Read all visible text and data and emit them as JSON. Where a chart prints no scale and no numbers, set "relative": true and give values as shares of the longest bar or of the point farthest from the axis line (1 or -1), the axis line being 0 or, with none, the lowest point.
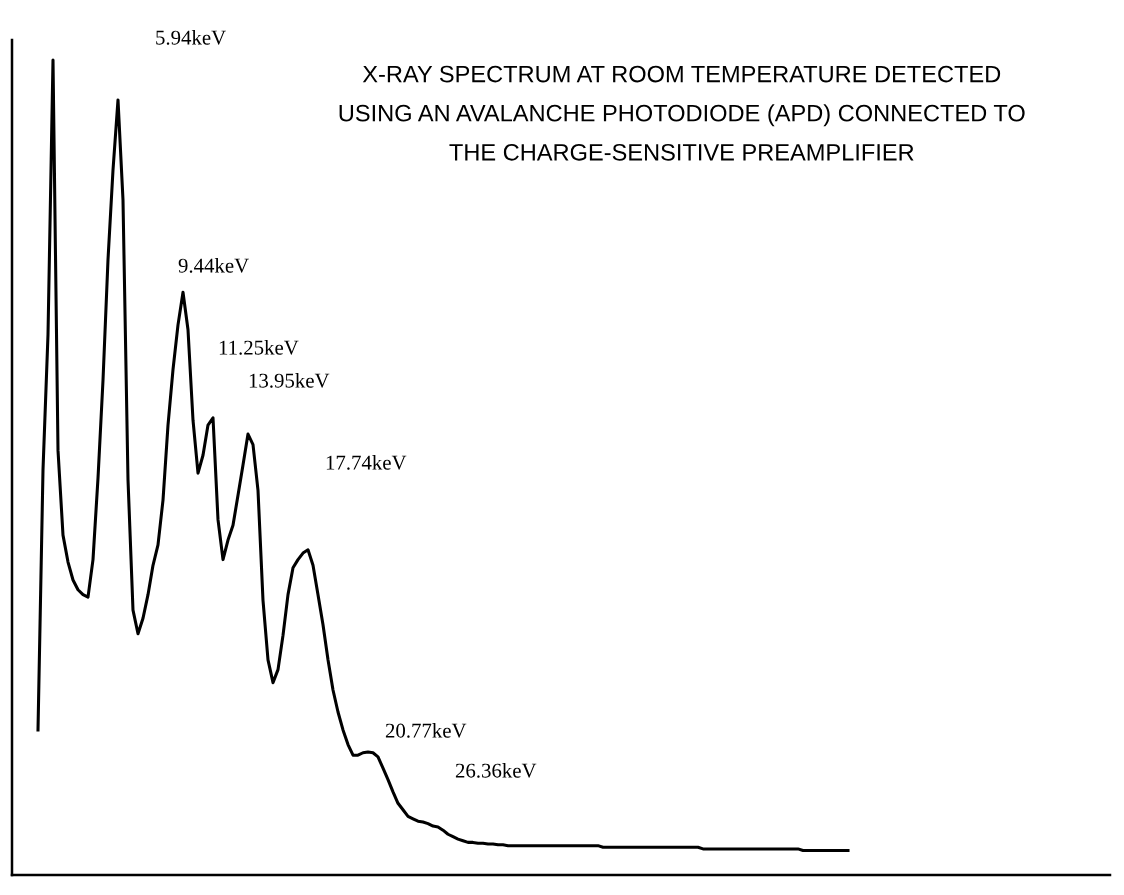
{
  "chart_data": {
    "type": "line",
    "relative": true,
    "marker": "none",
    "line_style": "solid",
    "title": "X-RAY SPECTRUM AT ROOM TEMPERATURE DETECTED\nUSING AN AVALANCHE PHOTODIODE (APD) CONNECTED TO\nTHE CHARGE-SENSITIVE PREAMPLIFIER",
    "annotations": [
      "5.94keV",
      "9.44keV",
      "11.25keV",
      "13.95keV",
      "17.74keV",
      "20.77keV",
      "26.36keV"
    ],
    "categories": [
      null,
      null,
      null,
      null,
      null,
      null,
      null,
      null,
      null,
      null,
      null,
      null,
      null,
      null,
      null,
      null,
      null,
      null,
      null,
      null,
      null,
      null,
      null,
      null,
      null,
      null,
      null,
      null,
      null,
      null,
      null,
      null,
      null,
      null,
      null,
      null,
      null,
      null,
      null,
      null,
      null,
      null,
      null,
      null,
      null,
      null,
      null,
      null,
      null,
      null,
      null,
      null,
      null,
      null,
      null,
      null,
      null,
      null,
      null,
      null,
      null,
      null,
      null,
      null,
      null,
      null,
      null,
      null,
      null,
      null,
      null,
      null,
      null,
      null,
      null,
      null,
      null,
      null,
      null,
      null,
      null,
      null,
      null,
      null,
      null,
      null,
      null,
      null,
      null,
      null,
      null,
      null,
      null,
      null,
      null,
      null,
      null,
      null,
      null,
      null,
      null,
      null,
      null,
      null,
      null,
      null,
      null,
      null,
      null,
      null,
      null,
      null,
      null,
      null,
      null,
      null,
      null,
      null,
      null,
      null,
      null,
      null,
      null,
      null,
      null,
      null,
      null,
      null,
      null,
      null,
      null,
      null,
      null,
      null,
      null,
      null,
      null,
      null,
      null,
      null,
      null,
      null,
      null,
      null,
      null,
      null,
      null,
      null,
      null,
      null,
      null,
      null,
      null,
      null,
      null,
      null,
      null,
      null,
      null,
      null,
      null,
      null,
      null
    ],
    "series": [
      {
        "color": "#000000",
        "values": [
          0.178,
          0.497,
          0.663,
          1.0,
          0.521,
          0.417,
          0.384,
          0.362,
          0.35,
          0.344,
          0.341,
          0.387,
          0.487,
          0.607,
          0.755,
          0.865,
          0.951,
          0.828,
          0.485,
          0.325,
          0.296,
          0.315,
          0.344,
          0.38,
          0.405,
          0.46,
          0.552,
          0.62,
          0.675,
          0.715,
          0.669,
          0.558,
          0.493,
          0.515,
          0.552,
          0.561,
          0.436,
          0.387,
          0.411,
          0.429,
          0.466,
          0.503,
          0.541,
          0.528,
          0.472,
          0.337,
          0.264,
          0.236,
          0.252,
          0.294,
          0.344,
          0.377,
          0.387,
          0.395,
          0.399,
          0.38,
          0.344,
          0.307,
          0.264,
          0.227,
          0.2,
          0.178,
          0.16,
          0.147,
          0.147,
          0.15,
          0.151,
          0.15,
          0.145,
          0.131,
          0.117,
          0.102,
          0.088,
          0.08,
          0.072,
          0.069,
          0.066,
          0.065,
          0.063,
          0.06,
          0.059,
          0.055,
          0.05,
          0.047,
          0.044,
          0.042,
          0.04,
          0.04,
          0.039,
          0.039,
          0.038,
          0.038,
          0.037,
          0.037,
          0.036,
          0.036,
          0.036,
          0.036,
          0.036,
          0.036,
          0.036,
          0.036,
          0.036,
          0.036,
          0.036,
          0.036,
          0.036,
          0.036,
          0.036,
          0.036,
          0.036,
          0.036,
          0.036,
          0.034,
          0.034,
          0.034,
          0.034,
          0.034,
          0.034,
          0.034,
          0.034,
          0.034,
          0.034,
          0.034,
          0.034,
          0.034,
          0.034,
          0.034,
          0.034,
          0.034,
          0.034,
          0.034,
          0.034,
          0.032,
          0.032,
          0.032,
          0.032,
          0.032,
          0.032,
          0.032,
          0.032,
          0.032,
          0.032,
          0.032,
          0.032,
          0.032,
          0.032,
          0.032,
          0.032,
          0.032,
          0.032,
          0.032,
          0.032,
          0.03,
          0.03,
          0.03,
          0.03,
          0.03,
          0.03,
          0.03,
          0.03,
          0.03,
          0.03
        ]
      }
    ]
  }
}
